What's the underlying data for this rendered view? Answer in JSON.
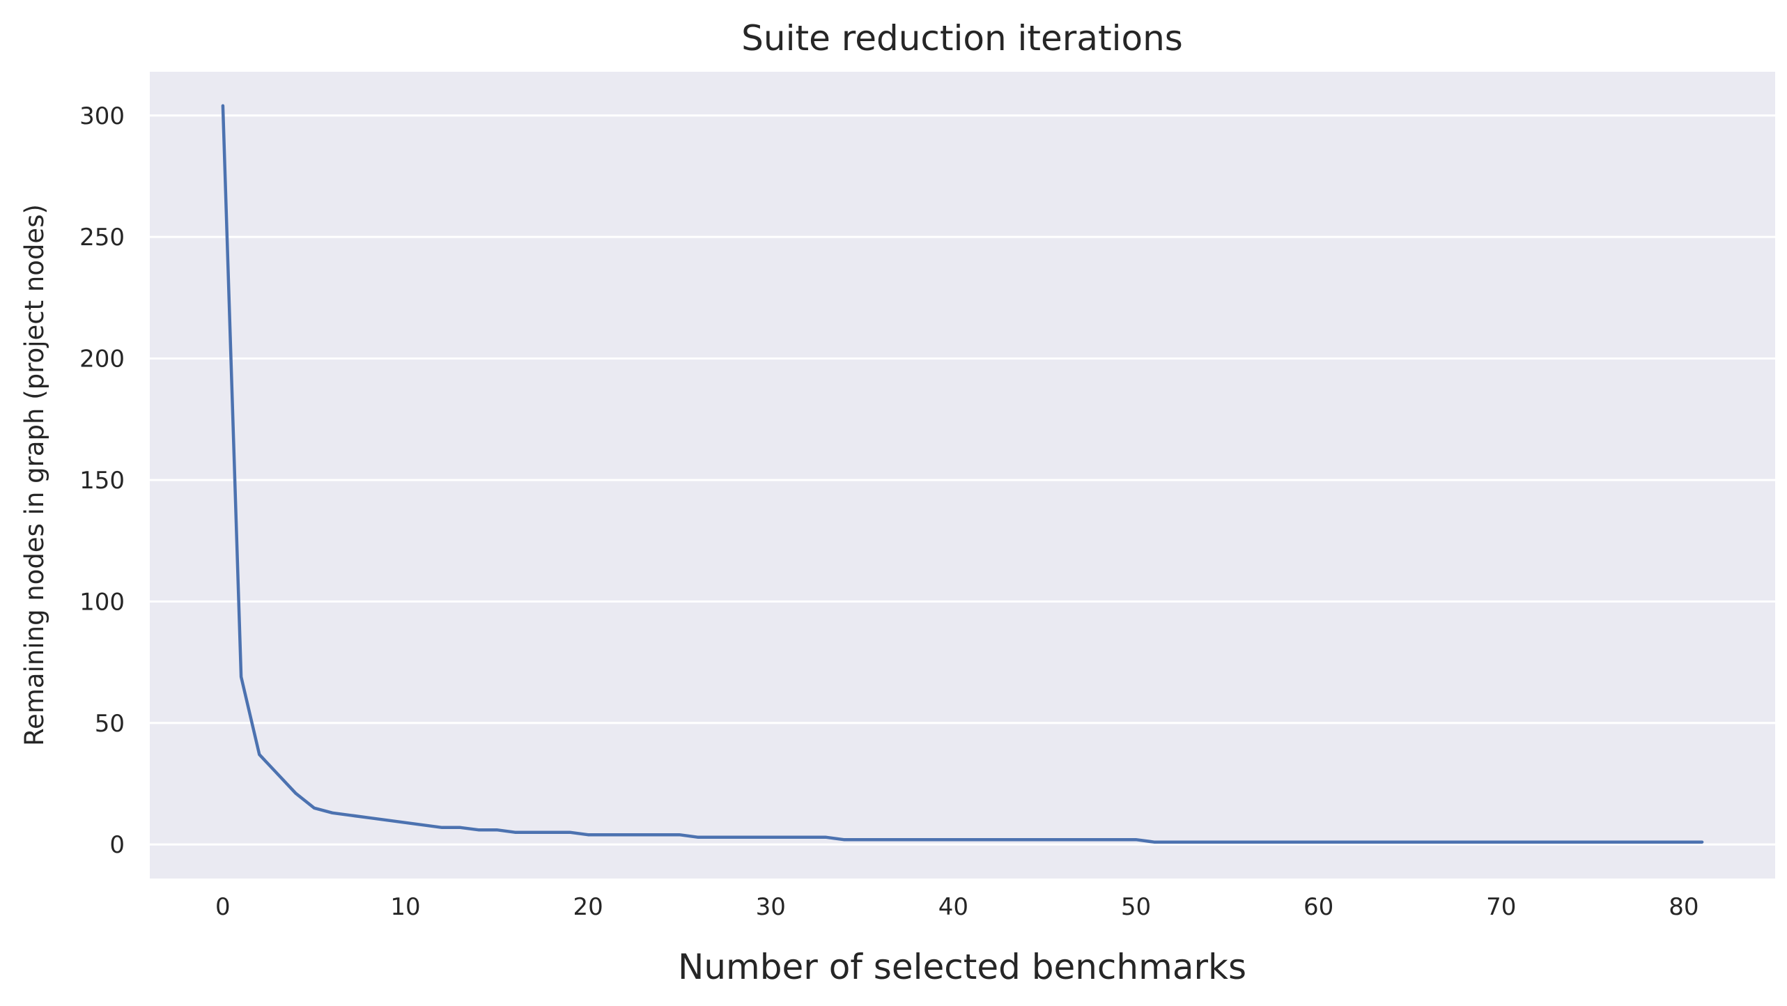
{
  "chart_data": {
    "type": "line",
    "title": "Suite reduction iterations",
    "xlabel": "Number of selected benchmarks",
    "ylabel": "Remaining nodes in graph (project nodes)",
    "xlim": [
      -4,
      85
    ],
    "ylim": [
      -14,
      318
    ],
    "xticks": [
      0,
      10,
      20,
      30,
      40,
      50,
      60,
      70,
      80
    ],
    "yticks": [
      0,
      50,
      100,
      150,
      200,
      250,
      300
    ],
    "grid": "horizontal",
    "background": "#eaeaf2",
    "series": [
      {
        "color": "#4c72b0",
        "x": [
          0,
          1,
          2,
          3,
          4,
          5,
          6,
          7,
          8,
          9,
          10,
          11,
          12,
          13,
          14,
          15,
          16,
          17,
          18,
          19,
          20,
          21,
          22,
          23,
          24,
          25,
          26,
          27,
          28,
          29,
          30,
          31,
          32,
          33,
          34,
          35,
          36,
          37,
          38,
          39,
          40,
          41,
          42,
          43,
          44,
          45,
          46,
          47,
          48,
          49,
          50,
          51,
          52,
          53,
          54,
          55,
          56,
          57,
          58,
          59,
          60,
          61,
          62,
          63,
          64,
          65,
          66,
          67,
          68,
          69,
          70,
          71,
          72,
          73,
          74,
          75,
          76,
          77,
          78,
          79,
          80,
          81
        ],
        "y": [
          304,
          69,
          37,
          29,
          21,
          15,
          13,
          12,
          11,
          10,
          9,
          8,
          7,
          7,
          6,
          6,
          5,
          5,
          5,
          5,
          4,
          4,
          4,
          4,
          4,
          4,
          3,
          3,
          3,
          3,
          3,
          3,
          3,
          3,
          2,
          2,
          2,
          2,
          2,
          2,
          2,
          2,
          2,
          2,
          2,
          2,
          2,
          2,
          2,
          2,
          2,
          1,
          1,
          1,
          1,
          1,
          1,
          1,
          1,
          1,
          1,
          1,
          1,
          1,
          1,
          1,
          1,
          1,
          1,
          1,
          1,
          1,
          1,
          1,
          1,
          1,
          1,
          1,
          1,
          1,
          1,
          1
        ]
      }
    ]
  }
}
